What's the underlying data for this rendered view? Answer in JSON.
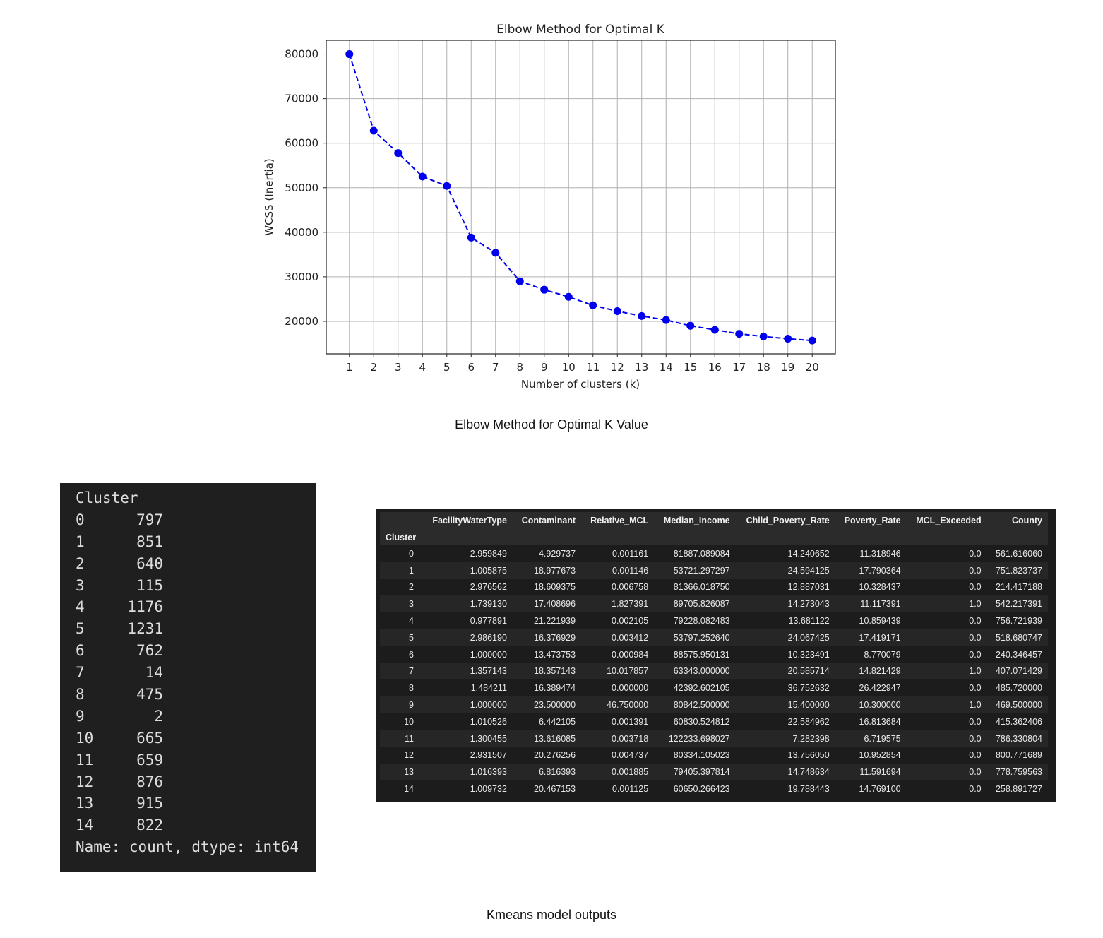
{
  "chart_data": {
    "type": "line",
    "title": "Elbow Method for Optimal K",
    "xlabel": "Number of clusters (k)",
    "ylabel": "WCSS (Inertia)",
    "x": [
      1,
      2,
      3,
      4,
      5,
      6,
      7,
      8,
      9,
      10,
      11,
      12,
      13,
      14,
      15,
      16,
      17,
      18,
      19,
      20
    ],
    "series": [
      {
        "values": [
          80000,
          62800,
          57800,
          52500,
          50400,
          38800,
          35400,
          29000,
          27100,
          25500,
          23600,
          22300,
          21200,
          20300,
          19000,
          18100,
          17200,
          16600,
          16100,
          15700
        ]
      }
    ],
    "y_ticks": [
      20000,
      30000,
      40000,
      50000,
      60000,
      70000,
      80000
    ],
    "ylim": [
      12700,
      83100
    ],
    "xlim": [
      0.05,
      20.95
    ],
    "grid": true,
    "line_style": "dashed",
    "marker": "circle",
    "color": "#0000ee"
  },
  "captions": {
    "elbow": "Elbow Method for Optimal K Value",
    "outputs": "Kmeans model outputs"
  },
  "counts": {
    "header": "Cluster",
    "rows": [
      {
        "cluster": "0",
        "count": "797"
      },
      {
        "cluster": "1",
        "count": "851"
      },
      {
        "cluster": "2",
        "count": "640"
      },
      {
        "cluster": "3",
        "count": "115"
      },
      {
        "cluster": "4",
        "count": "1176"
      },
      {
        "cluster": "5",
        "count": "1231"
      },
      {
        "cluster": "6",
        "count": "762"
      },
      {
        "cluster": "7",
        "count": "14"
      },
      {
        "cluster": "8",
        "count": "475"
      },
      {
        "cluster": "9",
        "count": "2"
      },
      {
        "cluster": "10",
        "count": "665"
      },
      {
        "cluster": "11",
        "count": "659"
      },
      {
        "cluster": "12",
        "count": "876"
      },
      {
        "cluster": "13",
        "count": "915"
      },
      {
        "cluster": "14",
        "count": "822"
      }
    ],
    "footer": "Name: count, dtype: int64"
  },
  "cluster_table": {
    "index_name": "Cluster",
    "columns": [
      "FacilityWaterType",
      "Contaminant",
      "Relative_MCL",
      "Median_Income",
      "Child_Poverty_Rate",
      "Poverty_Rate",
      "MCL_Exceeded",
      "County"
    ],
    "rows": [
      [
        "0",
        "2.959849",
        "4.929737",
        "0.001161",
        "81887.089084",
        "14.240652",
        "11.318946",
        "0.0",
        "561.616060"
      ],
      [
        "1",
        "1.005875",
        "18.977673",
        "0.001146",
        "53721.297297",
        "24.594125",
        "17.790364",
        "0.0",
        "751.823737"
      ],
      [
        "2",
        "2.976562",
        "18.609375",
        "0.006758",
        "81366.018750",
        "12.887031",
        "10.328437",
        "0.0",
        "214.417188"
      ],
      [
        "3",
        "1.739130",
        "17.408696",
        "1.827391",
        "89705.826087",
        "14.273043",
        "11.117391",
        "1.0",
        "542.217391"
      ],
      [
        "4",
        "0.977891",
        "21.221939",
        "0.002105",
        "79228.082483",
        "13.681122",
        "10.859439",
        "0.0",
        "756.721939"
      ],
      [
        "5",
        "2.986190",
        "16.376929",
        "0.003412",
        "53797.252640",
        "24.067425",
        "17.419171",
        "0.0",
        "518.680747"
      ],
      [
        "6",
        "1.000000",
        "13.473753",
        "0.000984",
        "88575.950131",
        "10.323491",
        "8.770079",
        "0.0",
        "240.346457"
      ],
      [
        "7",
        "1.357143",
        "18.357143",
        "10.017857",
        "63343.000000",
        "20.585714",
        "14.821429",
        "1.0",
        "407.071429"
      ],
      [
        "8",
        "1.484211",
        "16.389474",
        "0.000000",
        "42392.602105",
        "36.752632",
        "26.422947",
        "0.0",
        "485.720000"
      ],
      [
        "9",
        "1.000000",
        "23.500000",
        "46.750000",
        "80842.500000",
        "15.400000",
        "10.300000",
        "1.0",
        "469.500000"
      ],
      [
        "10",
        "1.010526",
        "6.442105",
        "0.001391",
        "60830.524812",
        "22.584962",
        "16.813684",
        "0.0",
        "415.362406"
      ],
      [
        "11",
        "1.300455",
        "13.616085",
        "0.003718",
        "122233.698027",
        "7.282398",
        "6.719575",
        "0.0",
        "786.330804"
      ],
      [
        "12",
        "2.931507",
        "20.276256",
        "0.004737",
        "80334.105023",
        "13.756050",
        "10.952854",
        "0.0",
        "800.771689"
      ],
      [
        "13",
        "1.016393",
        "6.816393",
        "0.001885",
        "79405.397814",
        "14.748634",
        "11.591694",
        "0.0",
        "778.759563"
      ],
      [
        "14",
        "1.009732",
        "20.467153",
        "0.001125",
        "60650.266423",
        "19.788443",
        "14.769100",
        "0.0",
        "258.891727"
      ]
    ]
  }
}
